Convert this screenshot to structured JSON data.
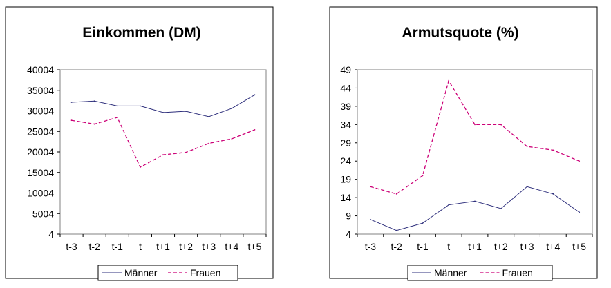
{
  "chart_data": [
    {
      "type": "line",
      "title": "Einkommen (DM)",
      "xlabel": "",
      "ylabel": "",
      "categories": [
        "t-3",
        "t-2",
        "t-1",
        "t",
        "t+1",
        "t+2",
        "t+3",
        "t+4",
        "t+5"
      ],
      "ylim": [
        4,
        40004
      ],
      "yticks": [
        "40004",
        "35004",
        "30004",
        "25004",
        "20004",
        "15004",
        "10004",
        "5004",
        "4"
      ],
      "grid": false,
      "legend_position": "bottom",
      "series": [
        {
          "name": "Männer",
          "color": "#2e2f7c",
          "dash": "solid",
          "values": [
            32100,
            32400,
            31200,
            31200,
            29600,
            29900,
            28600,
            30600,
            33900
          ]
        },
        {
          "name": "Frauen",
          "color": "#cc0077",
          "dash": "dashed",
          "values": [
            27700,
            26800,
            28400,
            16300,
            19300,
            19900,
            22100,
            23200,
            25400
          ]
        }
      ]
    },
    {
      "type": "line",
      "title": "Armutsquote (%)",
      "xlabel": "",
      "ylabel": "",
      "categories": [
        "t-3",
        "t-2",
        "t-1",
        "t",
        "t+1",
        "t+2",
        "t+3",
        "t+4",
        "t+5"
      ],
      "ylim": [
        4,
        49
      ],
      "yticks": [
        "49",
        "44",
        "39",
        "34",
        "29",
        "24",
        "19",
        "14",
        "9",
        "4"
      ],
      "grid": false,
      "legend_position": "bottom",
      "series": [
        {
          "name": "Männer",
          "color": "#2e2f7c",
          "dash": "solid",
          "values": [
            8,
            5,
            7,
            12,
            13,
            11,
            17,
            15,
            10
          ]
        },
        {
          "name": "Frauen",
          "color": "#cc0077",
          "dash": "dashed",
          "values": [
            17,
            15,
            20,
            46,
            34,
            34,
            28,
            27,
            24
          ]
        }
      ]
    }
  ]
}
